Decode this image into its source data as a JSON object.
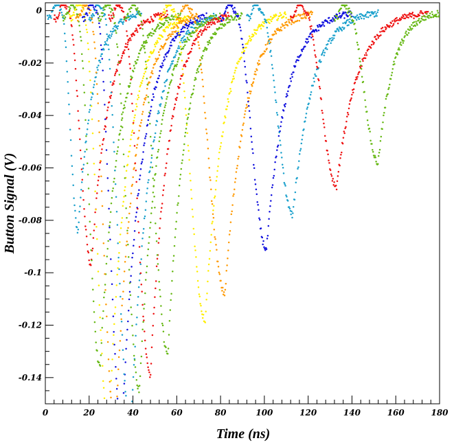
{
  "chart_data": {
    "type": "scatter",
    "title": "",
    "xlabel": "Time (ns)",
    "ylabel": "Button Signal (V)",
    "xlim": [
      0,
      180
    ],
    "ylim": [
      -0.15,
      0.003
    ],
    "x_ticks": [
      0,
      20,
      40,
      60,
      80,
      100,
      120,
      140,
      160,
      180
    ],
    "x_tick_labels": [
      "0",
      "20",
      "40",
      "60",
      "80",
      "100",
      "120",
      "140",
      "160",
      "180"
    ],
    "y_ticks": [
      0,
      -0.02,
      -0.04,
      -0.06,
      -0.08,
      -0.1,
      -0.12,
      -0.14
    ],
    "y_tick_labels": [
      "0",
      "-0.02",
      "-0.04",
      "-0.06",
      "-0.08",
      "-0.1",
      "-0.12",
      "-0.14"
    ],
    "grid": false,
    "legend": "none",
    "marker": "dot",
    "pulses": [
      {
        "color": "#1aa0cc",
        "start": 7,
        "peak_x": 15,
        "peak_y": -0.084,
        "end": 44
      },
      {
        "color": "#ee1111",
        "start": 10,
        "peak_x": 21,
        "peak_y": -0.097,
        "end": 56
      },
      {
        "color": "#66b814",
        "start": 14,
        "peak_x": 25,
        "peak_y": -0.136,
        "end": 62
      },
      {
        "color": "#ffee00",
        "start": 17,
        "peak_x": 29,
        "peak_y": -0.16,
        "end": 66
      },
      {
        "color": "#ff9900",
        "start": 20,
        "peak_x": 32,
        "peak_y": -0.16,
        "end": 70
      },
      {
        "color": "#1010dd",
        "start": 23,
        "peak_x": 35,
        "peak_y": -0.16,
        "end": 74
      },
      {
        "color": "#1aa0cc",
        "start": 26,
        "peak_x": 39,
        "peak_y": -0.16,
        "end": 78
      },
      {
        "color": "#66b814",
        "start": 30,
        "peak_x": 43,
        "peak_y": -0.145,
        "end": 80
      },
      {
        "color": "#ee1111",
        "start": 35,
        "peak_x": 48,
        "peak_y": -0.139,
        "end": 84
      },
      {
        "color": "#66b814",
        "start": 42,
        "peak_x": 56,
        "peak_y": -0.131,
        "end": 90
      },
      {
        "color": "#ffee00",
        "start": 58,
        "peak_x": 73,
        "peak_y": -0.118,
        "end": 110
      },
      {
        "color": "#ff9900",
        "start": 66,
        "peak_x": 82,
        "peak_y": -0.108,
        "end": 122
      },
      {
        "color": "#1010dd",
        "start": 86,
        "peak_x": 101,
        "peak_y": -0.091,
        "end": 140
      },
      {
        "color": "#1aa0cc",
        "start": 98,
        "peak_x": 113,
        "peak_y": -0.078,
        "end": 152
      },
      {
        "color": "#ee1111",
        "start": 118,
        "peak_x": 133,
        "peak_y": -0.067,
        "end": 175
      },
      {
        "color": "#66b814",
        "start": 138,
        "peak_x": 152,
        "peak_y": -0.058,
        "end": 182
      }
    ]
  }
}
